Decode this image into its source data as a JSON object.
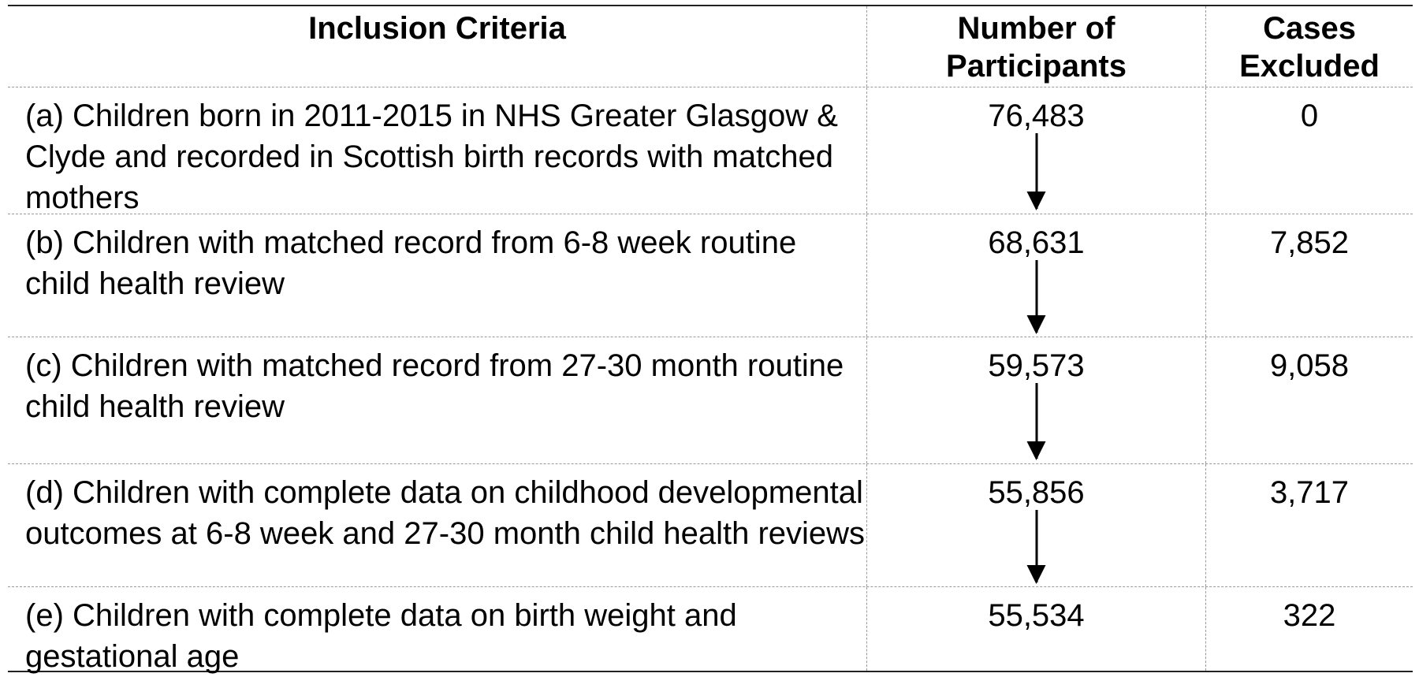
{
  "header": {
    "criteria": "Inclusion Criteria",
    "participants_line1": "Number of",
    "participants_line2": "Participants",
    "excluded_line1": "Cases",
    "excluded_line2": "Excluded"
  },
  "rows": [
    {
      "criteria": "(a) Children born in 2011-2015 in NHS Greater Glasgow & Clyde and recorded in Scottish birth records with matched mothers",
      "participants": "76,483",
      "excluded": "0"
    },
    {
      "criteria": "(b) Children with matched record from 6-8 week routine child health review",
      "participants": "68,631",
      "excluded": "7,852"
    },
    {
      "criteria": "(c) Children with matched record from 27-30 month routine child health review",
      "participants": "59,573",
      "excluded": "9,058"
    },
    {
      "criteria": "(d) Children with complete data on childhood developmental outcomes at 6-8 week and 27-30 month child health reviews",
      "participants": "55,856",
      "excluded": "3,717"
    },
    {
      "criteria": "(e) Children with complete data on birth weight and gestational age",
      "participants": "55,534",
      "excluded": "322"
    }
  ]
}
